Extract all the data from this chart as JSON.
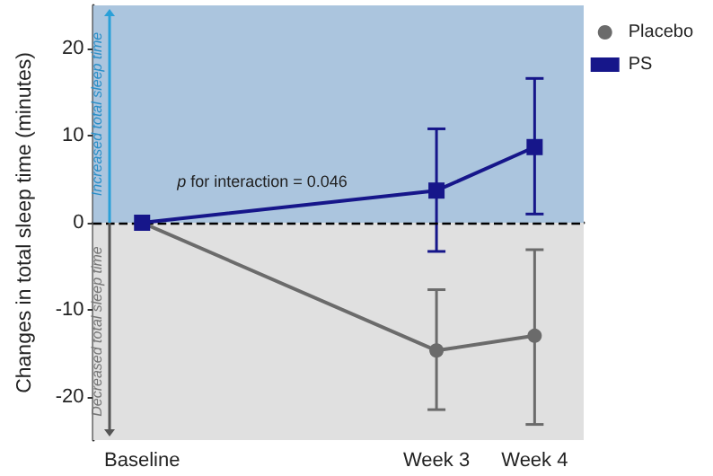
{
  "chart_data": {
    "type": "line",
    "ylabel": "Changes in total sleep time (minutes)",
    "categories": [
      "Baseline",
      null,
      null,
      "Week 3",
      "Week 4"
    ],
    "ylim": [
      -25,
      25
    ],
    "yticks": [
      -20,
      -10,
      0,
      10,
      20
    ],
    "series": [
      {
        "name": "Placebo",
        "color": "#6b6b6b",
        "marker": "circle",
        "values": [
          0,
          null,
          null,
          -14.7,
          -13.0
        ],
        "errors": [
          null,
          null,
          null,
          [
            -21.5,
            -7.7
          ],
          [
            -23.2,
            -3.1
          ]
        ]
      },
      {
        "name": "PS",
        "color": "#16168a",
        "marker": "square",
        "values": [
          0,
          null,
          null,
          3.7,
          8.7
        ],
        "errors": [
          null,
          null,
          null,
          [
            -3.3,
            10.8
          ],
          [
            1.0,
            16.6
          ]
        ]
      }
    ],
    "bands": [
      {
        "axis": "y",
        "from": 0,
        "to": 25,
        "label": "Increased total sleep time",
        "color": "#abc5de"
      },
      {
        "axis": "y",
        "from": -25,
        "to": 0,
        "label": "Decreased total sleep time",
        "color": "#e0e0e0"
      }
    ],
    "ref_lines": [
      {
        "axis": "y",
        "value": 0,
        "line_style": "dashed",
        "color": "#000000"
      }
    ],
    "annotations": [
      "p for interaction = 0.046"
    ],
    "grid": false,
    "legend": "top right"
  }
}
